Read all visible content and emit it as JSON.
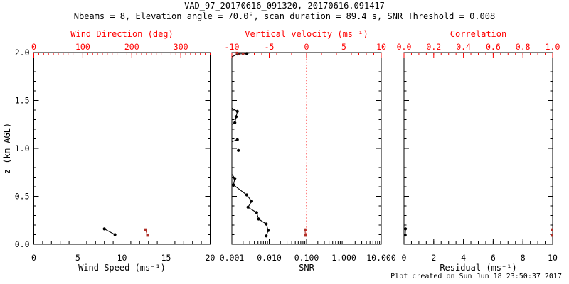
{
  "header": {
    "title": "VAD_97_20170616_091320, 20170616.091417",
    "subtitle": "Nbeams = 8, Elevation angle = 70.0°, scan duration = 89.4 s, SNR Threshold = 0.008"
  },
  "footer": {
    "created": "Plot created on Sun Jun 18 23:50:37 2017"
  },
  "colors": {
    "background": "#ffffff",
    "black": "#000000",
    "axis_red": "#ff0000",
    "marker_red": "#b03028"
  },
  "yaxis": {
    "label": "z (km AGL)",
    "min": 0,
    "max": 2,
    "majors": [
      0,
      0.5,
      1.0,
      1.5,
      2.0
    ],
    "labels": [
      "0.0",
      "0.5",
      "1.0",
      "1.5",
      "2.0"
    ],
    "minor_step": 0.1
  },
  "chart_data": [
    {
      "type": "scatter",
      "title_top": "Wind Direction (deg)",
      "title_bottom": "Wind Speed (ms⁻¹)",
      "bottom": {
        "scale": "linear",
        "min": 0,
        "max": 20,
        "majors": [
          0,
          5,
          10,
          15,
          20
        ],
        "labels": [
          "0",
          "5",
          "10",
          "15",
          "20"
        ],
        "minor_step": 1
      },
      "top": {
        "scale": "linear",
        "min": 0,
        "max": 360,
        "majors": [
          0,
          100,
          200,
          300
        ],
        "labels": [
          "0",
          "100",
          "200",
          "300"
        ],
        "minor_step": 10
      },
      "series": [
        {
          "name": "wind-speed",
          "axis": "bottom",
          "color": "black",
          "points": [
            [
              8.0,
              0.16
            ],
            [
              9.2,
              0.1
            ]
          ],
          "lines": [
            [
              [
                8.0,
                0.16
              ],
              [
                9.2,
                0.1
              ]
            ]
          ]
        },
        {
          "name": "wind-direction",
          "axis": "top",
          "color": "red",
          "points": [
            [
              228,
              0.152
            ],
            [
              232,
              0.092
            ]
          ],
          "lines": [
            [
              [
                228,
                0.152
              ],
              [
                232,
                0.092
              ]
            ]
          ]
        }
      ]
    },
    {
      "type": "scatter",
      "title_top": "Vertical velocity (ms⁻¹)",
      "title_bottom": "SNR",
      "bottom": {
        "scale": "log",
        "min": 0.001,
        "max": 10,
        "majors": [
          0.001,
          0.01,
          0.1,
          1,
          10
        ],
        "labels": [
          "0.001",
          "0.010",
          "0.100",
          "1.000",
          "10.000"
        ]
      },
      "top": {
        "scale": "linear",
        "min": -10,
        "max": 10,
        "majors": [
          -10,
          -5,
          0,
          5,
          10
        ],
        "labels": [
          "-10",
          "-5",
          "0",
          "5",
          "10"
        ],
        "minor_step": 1
      },
      "refline": {
        "axis": "top",
        "value": 0
      },
      "series": [
        {
          "name": "snr-profile",
          "axis": "bottom",
          "color": "black",
          "points": [
            [
              0.0083,
              0.087
            ],
            [
              0.0094,
              0.144
            ],
            [
              0.0083,
              0.211
            ],
            [
              0.0052,
              0.263
            ],
            [
              0.0046,
              0.33
            ],
            [
              0.0027,
              0.387
            ],
            [
              0.0034,
              0.448
            ],
            [
              0.0025,
              0.515
            ],
            [
              0.0011,
              0.619
            ],
            [
              0.0012,
              0.687
            ],
            [
              0.0015,
              0.979
            ],
            [
              0.0014,
              1.09
            ],
            [
              0.0012,
              1.268
            ],
            [
              0.0013,
              1.33
            ],
            [
              0.0014,
              1.386
            ],
            [
              0.0014,
              1.985
            ],
            [
              0.0025,
              1.99
            ]
          ],
          "lines": [
            [
              [
                0.0083,
                0.087
              ],
              [
                0.0094,
                0.144
              ],
              [
                0.0083,
                0.211
              ],
              [
                0.0052,
                0.263
              ],
              [
                0.0046,
                0.33
              ],
              [
                0.0027,
                0.387
              ],
              [
                0.0034,
                0.448
              ],
              [
                0.0025,
                0.515
              ],
              [
                0.0011,
                0.619
              ],
              [
                0.0012,
                0.687
              ],
              [
                0.0009,
                0.73
              ]
            ],
            [
              [
                0.0009,
                1.07
              ],
              [
                0.0014,
                1.09
              ]
            ],
            [
              [
                0.0009,
                1.25
              ],
              [
                0.0012,
                1.268
              ],
              [
                0.0013,
                1.33
              ],
              [
                0.0014,
                1.386
              ],
              [
                0.0009,
                1.42
              ]
            ],
            [
              [
                0.001,
                1.955
              ],
              [
                0.0014,
                1.985
              ],
              [
                0.0025,
                1.99
              ],
              [
                0.0033,
                2.0
              ],
              [
                0.0046,
                2.0
              ]
            ]
          ]
        },
        {
          "name": "vertical-velocity",
          "axis": "top",
          "color": "red",
          "points": [
            [
              -0.2,
              0.152
            ],
            [
              -0.15,
              0.092
            ],
            [
              -9.3,
              1.995
            ],
            [
              -8.5,
              1.985
            ]
          ],
          "lines": [
            [
              [
                -0.2,
                0.152
              ],
              [
                -0.15,
                0.092
              ]
            ]
          ]
        }
      ]
    },
    {
      "type": "scatter",
      "title_top": "Correlation",
      "title_bottom": "Residual (ms⁻¹)",
      "bottom": {
        "scale": "linear",
        "min": 0,
        "max": 10,
        "majors": [
          0,
          2,
          4,
          6,
          8,
          10
        ],
        "labels": [
          "0",
          "2",
          "4",
          "6",
          "8",
          "10"
        ],
        "minor_step": 0.5
      },
      "top": {
        "scale": "linear",
        "min": 0,
        "max": 1,
        "majors": [
          0,
          0.2,
          0.4,
          0.6,
          0.8,
          1.0
        ],
        "labels": [
          "0.0",
          "0.2",
          "0.4",
          "0.6",
          "0.8",
          "1.0"
        ],
        "minor_step": 0.05
      },
      "series": [
        {
          "name": "residual",
          "axis": "bottom",
          "color": "black",
          "points": [
            [
              0.1,
              0.161
            ],
            [
              0.08,
              0.095
            ]
          ],
          "lines": [
            [
              [
                0.1,
                0.161
              ],
              [
                0.08,
                0.095
              ]
            ]
          ]
        },
        {
          "name": "correlation",
          "axis": "top",
          "color": "red",
          "points": [
            [
              0.995,
              0.152
            ],
            [
              0.995,
              0.092
            ]
          ],
          "lines": []
        }
      ]
    }
  ]
}
